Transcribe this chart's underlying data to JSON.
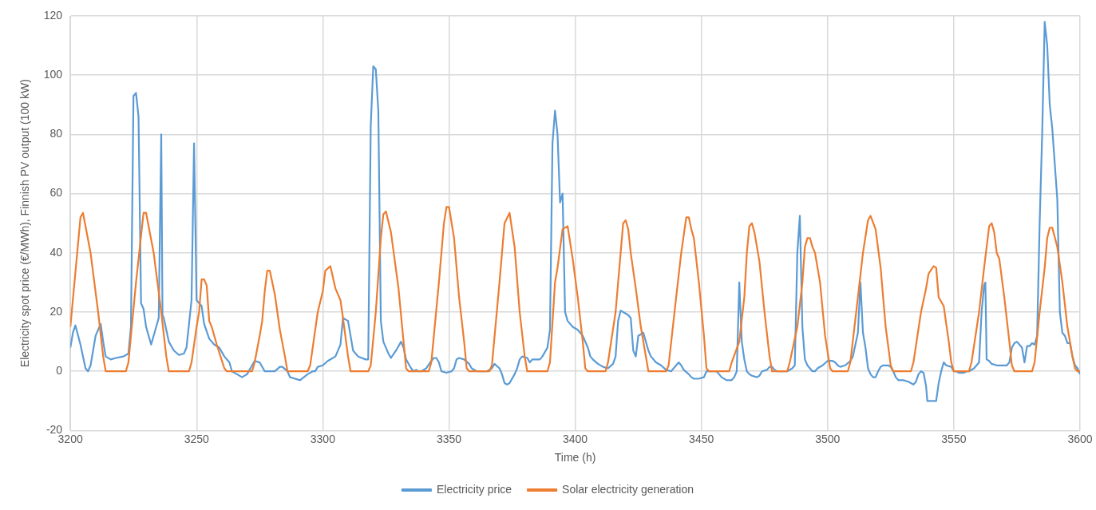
{
  "chart_data": {
    "type": "line",
    "xlabel": "Time (h)",
    "ylabel": "Electricity spot price (€/MWh), Finnish PV output (100 kW)",
    "xlim": [
      3200,
      3600
    ],
    "xticks": [
      3200,
      3250,
      3300,
      3350,
      3400,
      3450,
      3500,
      3550,
      3600
    ],
    "ylim": [
      -20,
      120
    ],
    "yticks": [
      -20,
      0,
      20,
      40,
      60,
      80,
      100,
      120
    ],
    "grid": true,
    "legend": "bottom",
    "marker": "none",
    "line_style": "solid",
    "series": [
      {
        "name": "Electricity price",
        "color": "#5b9bd5",
        "x": [
          3200,
          3201,
          3202,
          3204,
          3205,
          3206,
          3207,
          3208,
          3209,
          3210,
          3212,
          3213,
          3214,
          3216,
          3218,
          3221,
          3223,
          3224,
          3225,
          3226,
          3227,
          3228,
          3229,
          3230,
          3232,
          3234,
          3235,
          3236,
          3236.5,
          3237,
          3239,
          3241,
          3243,
          3245,
          3246,
          3248,
          3249,
          3250,
          3252,
          3253,
          3255,
          3257,
          3259,
          3261,
          3263,
          3264,
          3266,
          3268,
          3270,
          3272,
          3273,
          3275,
          3277,
          3281,
          3283,
          3284,
          3286,
          3287,
          3289,
          3291,
          3294,
          3296,
          3297,
          3298,
          3300,
          3302,
          3305,
          3307,
          3308,
          3310,
          3311,
          3312,
          3314,
          3317,
          3318,
          3319,
          3320,
          3321,
          3322,
          3323,
          3324,
          3326,
          3327,
          3329,
          3331,
          3332,
          3333,
          3335,
          3336,
          3337,
          3338,
          3339,
          3341,
          3343,
          3344,
          3345,
          3346,
          3347,
          3349,
          3351,
          3352,
          3353,
          3354,
          3356,
          3358,
          3359,
          3361,
          3365,
          3367,
          3368,
          3370,
          3371,
          3372,
          3373,
          3374,
          3376,
          3377,
          3378,
          3379,
          3381,
          3382,
          3383,
          3386,
          3387,
          3389,
          3390,
          3391,
          3392,
          3393,
          3394,
          3395,
          3396,
          3397,
          3399,
          3401,
          3403,
          3404,
          3405,
          3406,
          3407,
          3409,
          3411,
          3413,
          3415,
          3416,
          3417,
          3418,
          3419,
          3421,
          3422,
          3423,
          3424,
          3425,
          3427,
          3428,
          3429,
          3430,
          3432,
          3434,
          3436,
          3438,
          3439,
          3441,
          3442,
          3443,
          3445,
          3446,
          3447,
          3449,
          3451,
          3452,
          3455,
          3456,
          3457,
          3458,
          3460,
          3462,
          3463,
          3464,
          3465,
          3466,
          3467,
          3468,
          3469,
          3470,
          3472,
          3473,
          3474,
          3476,
          3477,
          3478,
          3479,
          3480,
          3484,
          3486,
          3487,
          3488,
          3489,
          3490,
          3491,
          3492,
          3493,
          3494,
          3495,
          3496,
          3498,
          3500,
          3502,
          3503,
          3504,
          3505,
          3507,
          3509,
          3510,
          3512,
          3513,
          3514,
          3515,
          3516,
          3517,
          3518,
          3519,
          3520,
          3521,
          3522,
          3524,
          3525,
          3526,
          3527,
          3528,
          3530,
          3532,
          3534,
          3535,
          3536,
          3537,
          3538,
          3539,
          3539.5,
          3543,
          3544,
          3545,
          3546,
          3547,
          3549,
          3550,
          3551,
          3552,
          3554,
          3555,
          3556,
          3558,
          3560,
          3561,
          3562,
          3562.5,
          3563,
          3564,
          3565,
          3567,
          3571,
          3572,
          3573,
          3574,
          3575,
          3577,
          3578,
          3579,
          3580,
          3581,
          3582,
          3583,
          3584,
          3585,
          3586,
          3587,
          3588,
          3589,
          3590,
          3591,
          3592,
          3593,
          3594,
          3595,
          3596,
          3597,
          3598,
          3599,
          3600
        ],
        "values": [
          8,
          13,
          15.5,
          9,
          5,
          1,
          0,
          2,
          7,
          12,
          16,
          10,
          5,
          4,
          4.5,
          5,
          6,
          15,
          93,
          94,
          86,
          23,
          21,
          15,
          9,
          15,
          18,
          80,
          19,
          18,
          10,
          7,
          5.5,
          6,
          8,
          24,
          77,
          24,
          22,
          16,
          11,
          9,
          8,
          5,
          3,
          0,
          -1,
          -2,
          -1,
          2,
          3.5,
          3,
          0,
          0,
          1.5,
          1.5,
          0,
          -2,
          -2.5,
          -3,
          -1,
          0,
          0,
          1.5,
          2,
          3.5,
          5,
          9,
          18,
          17,
          12,
          7,
          5,
          4,
          4,
          83,
          103,
          102,
          88,
          17,
          10,
          6,
          4.5,
          7,
          10,
          8,
          4,
          1,
          0,
          0.5,
          0,
          0,
          1,
          3.5,
          4.5,
          4.5,
          3,
          0,
          -0.5,
          0,
          1,
          4,
          4.5,
          4,
          2.5,
          1,
          0,
          0,
          1,
          2.5,
          1,
          -1,
          -4,
          -4.5,
          -4,
          -1,
          1,
          4,
          5,
          4.5,
          3,
          4,
          4,
          5,
          8,
          14,
          77,
          88,
          80,
          57,
          60,
          20,
          17,
          15,
          14,
          12,
          10,
          8,
          5,
          4,
          2.5,
          1.5,
          1,
          2.5,
          5,
          17,
          20.5,
          20,
          19,
          18,
          7,
          5,
          12,
          13,
          10,
          7,
          5,
          3,
          2,
          0.5,
          0,
          1,
          3,
          2,
          0.5,
          -1,
          -2,
          -2.5,
          -2.5,
          -2,
          0,
          0,
          0,
          -1,
          -2,
          -3,
          -3,
          -2,
          0,
          30,
          10,
          4,
          0,
          -1,
          -1.5,
          -2,
          -1.5,
          0,
          0.5,
          1.5,
          1.5,
          0.5,
          0,
          0,
          1,
          2,
          40,
          52.5,
          15,
          4,
          2,
          1,
          0,
          0,
          1,
          2,
          3.5,
          3.5,
          3,
          2,
          1.5,
          2,
          3.5,
          5,
          13,
          30,
          13,
          8,
          1,
          -1,
          -2,
          -2,
          0,
          1.5,
          2,
          2,
          1.5,
          0,
          -2,
          -3,
          -3,
          -3.5,
          -4.5,
          -3.5,
          -1,
          0,
          -0.5,
          -5,
          -10,
          -10,
          -4,
          0,
          3,
          2,
          1.5,
          0,
          0,
          -0.5,
          -0.5,
          0,
          0,
          1,
          3,
          20,
          29,
          30,
          4,
          3.5,
          2.5,
          2,
          2,
          3,
          8,
          9.5,
          10,
          8,
          3,
          8.5,
          8.5,
          9.5,
          9,
          12,
          50,
          80,
          118,
          110,
          90,
          82,
          70,
          58,
          20,
          13,
          12,
          9.5,
          9.5,
          5,
          2,
          1,
          -1
        ]
      },
      {
        "name": "Solar electricity generation",
        "color": "#ed7d31",
        "x": [
          3200,
          3204,
          3205,
          3208,
          3211,
          3213,
          3214,
          3222,
          3223,
          3226,
          3229,
          3230,
          3233,
          3236,
          3238,
          3239,
          3247,
          3248,
          3250,
          3251,
          3252,
          3253,
          3254,
          3255,
          3256,
          3258,
          3261,
          3262,
          3272,
          3273,
          3275,
          3276,
          3277,
          3278,
          3279,
          3281,
          3283,
          3285,
          3286,
          3294,
          3295,
          3298,
          3300,
          3301,
          3303,
          3305,
          3307,
          3308,
          3310,
          3311,
          3318,
          3319,
          3321,
          3323,
          3324,
          3325,
          3327,
          3330,
          3332,
          3333,
          3334,
          3342,
          3343,
          3346,
          3348,
          3349,
          3350,
          3352,
          3354,
          3356,
          3357,
          3358,
          3366,
          3367,
          3370,
          3372,
          3374,
          3376,
          3378,
          3380,
          3381,
          3389,
          3390,
          3392,
          3393,
          3395,
          3397,
          3399,
          3401,
          3403,
          3404,
          3405,
          3412,
          3413,
          3416,
          3418,
          3419,
          3420,
          3421,
          3422,
          3424,
          3426,
          3428,
          3429,
          3436,
          3437,
          3440,
          3442,
          3444,
          3445,
          3446,
          3447,
          3449,
          3451,
          3452,
          3453,
          3461,
          3462,
          3465,
          3467,
          3468,
          3469,
          3470,
          3471,
          3473,
          3475,
          3477,
          3478,
          3484,
          3485,
          3488,
          3490,
          3491,
          3492,
          3493,
          3494,
          3495,
          3497,
          3499,
          3501,
          3502,
          3508,
          3509,
          3512,
          3514,
          3516,
          3517,
          3519,
          3521,
          3523,
          3525,
          3526,
          3533,
          3534,
          3537,
          3539,
          3540,
          3542,
          3543,
          3544,
          3546,
          3548,
          3549,
          3550,
          3556,
          3557,
          3560,
          3562,
          3564,
          3565,
          3566,
          3567,
          3568,
          3570,
          3572,
          3573,
          3574,
          3581,
          3582,
          3584,
          3586,
          3587,
          3588,
          3589,
          3591,
          3593,
          3595,
          3597,
          3598,
          3599,
          3600
        ],
        "values": [
          15,
          52,
          53.5,
          40,
          20,
          5,
          0,
          0,
          3,
          30,
          53.5,
          53.5,
          40,
          20,
          5,
          0,
          0,
          3,
          15,
          20,
          31,
          31,
          29,
          17,
          15,
          9,
          1,
          0,
          0,
          3,
          12,
          17,
          27,
          34,
          34,
          26,
          14,
          5,
          0,
          0,
          2,
          20,
          27,
          34,
          35.5,
          28,
          24,
          18,
          5,
          0,
          0,
          2,
          20,
          45,
          53,
          54,
          47,
          28,
          10,
          1,
          0,
          0,
          3,
          30,
          50,
          55.5,
          55.5,
          45,
          25,
          10,
          1,
          0,
          0,
          2,
          30,
          50,
          53.5,
          42,
          20,
          5,
          0,
          0,
          3,
          30,
          35,
          48,
          49,
          38,
          25,
          10,
          1,
          0,
          0,
          3,
          20,
          40,
          50,
          51,
          48,
          40,
          28,
          15,
          5,
          0,
          0,
          2,
          25,
          40,
          52,
          52,
          48,
          45,
          30,
          12,
          1,
          0,
          0,
          3,
          10,
          25,
          40,
          49,
          50,
          47,
          37,
          20,
          5,
          0,
          0,
          3,
          15,
          30,
          42,
          45,
          45,
          42,
          40,
          30,
          12,
          1,
          0,
          0,
          3,
          25,
          40,
          51,
          52.5,
          48,
          35,
          15,
          2,
          0,
          0,
          3,
          20,
          28,
          33,
          35.5,
          35,
          25,
          22,
          10,
          3,
          0,
          0,
          3,
          20,
          35,
          49,
          50,
          47,
          40,
          38,
          25,
          10,
          2,
          0,
          0,
          3,
          20,
          35,
          45,
          48.5,
          48.5,
          42,
          30,
          15,
          5,
          1,
          0,
          0
        ]
      }
    ]
  }
}
